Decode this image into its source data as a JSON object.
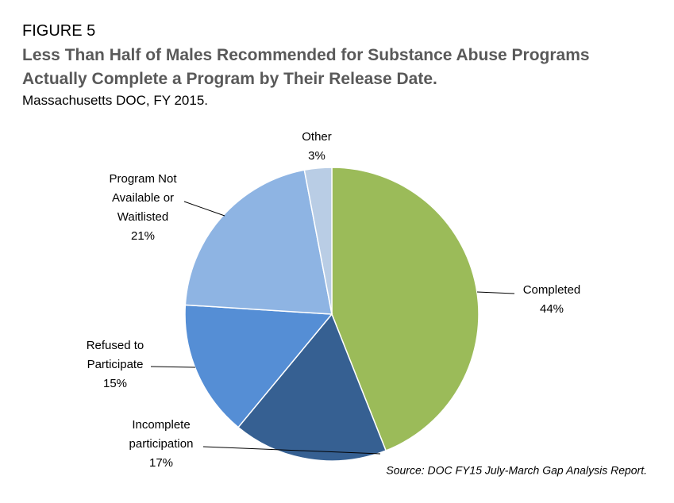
{
  "chart_data": {
    "type": "pie",
    "figure_label": "FIGURE 5",
    "title": "Less Than Half of Males Recommended for Substance Abuse Programs Actually Complete a Program by Their Release Date.",
    "subtitle": "Massachusetts DOC, FY 2015.",
    "source": "Source: DOC FY15 July-March Gap Analysis Report.",
    "categories": [
      [
        "Completed"
      ],
      [
        "Incomplete",
        "participation"
      ],
      [
        "Refused to",
        "Participate"
      ],
      [
        "Program Not",
        "Available or",
        "Waitlisted"
      ],
      [
        "Other"
      ]
    ],
    "values": [
      44,
      17,
      15,
      21,
      3
    ],
    "value_labels": [
      "44%",
      "17%",
      "15%",
      "21%",
      "3%"
    ],
    "colors": [
      "#9bbb59",
      "#366092",
      "#558ed5",
      "#8eb4e3",
      "#b9cde5"
    ]
  }
}
